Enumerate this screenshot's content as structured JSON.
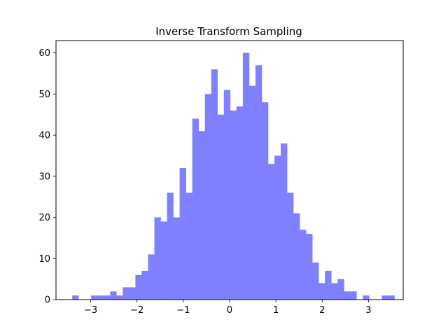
{
  "chart_data": {
    "type": "bar",
    "title": "Inverse Transform Sampling",
    "xlabel": "",
    "ylabel": "",
    "xlim": [
      -3.75,
      3.75
    ],
    "ylim": [
      0,
      63
    ],
    "bar_color": "#8080ff",
    "grid": false,
    "bins": {
      "start": -3.4,
      "width": 0.1365,
      "counts": [
        1,
        0,
        0,
        1,
        1,
        1,
        2,
        1,
        3,
        3,
        6,
        7,
        11,
        20,
        19,
        26,
        20,
        32,
        26,
        44,
        41,
        50,
        56,
        45,
        51,
        46,
        47,
        60,
        52,
        57,
        48,
        33,
        35,
        38,
        26,
        21,
        17,
        16,
        9,
        4,
        7,
        4,
        5,
        2,
        2,
        0,
        1,
        0,
        0,
        1,
        1
      ]
    },
    "xticks": [
      -3,
      -2,
      -1,
      0,
      1,
      2,
      3
    ],
    "xtick_labels": [
      "−3",
      "−2",
      "−1",
      "0",
      "1",
      "2",
      "3"
    ],
    "yticks": [
      0,
      10,
      20,
      30,
      40,
      50,
      60
    ],
    "ytick_labels": [
      "0",
      "10",
      "20",
      "30",
      "40",
      "50",
      "60"
    ]
  }
}
